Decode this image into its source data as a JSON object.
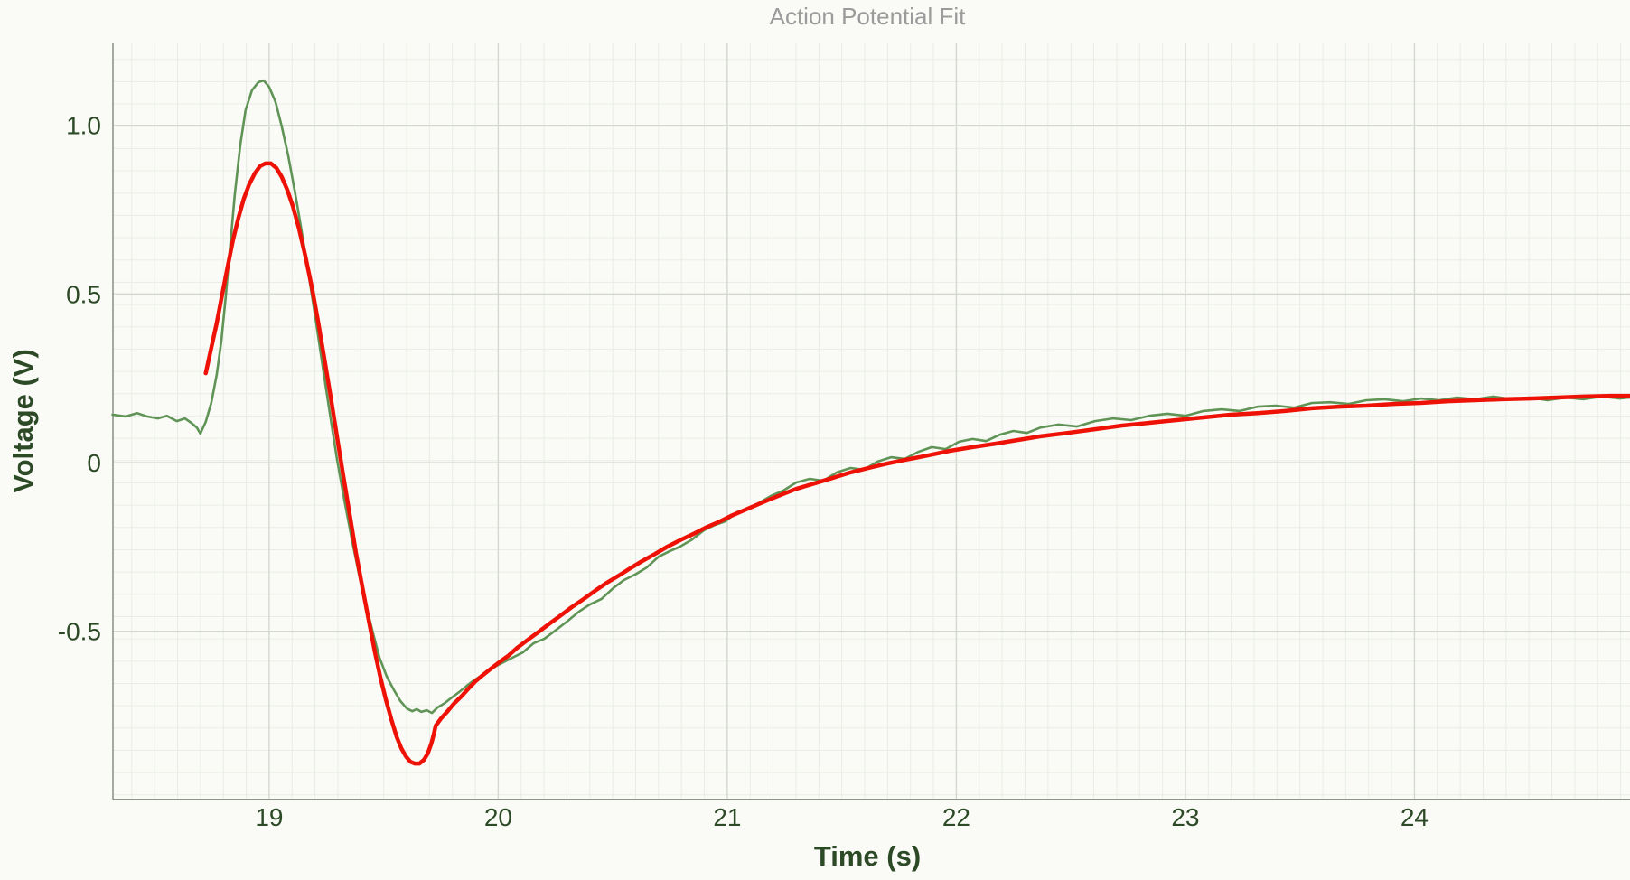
{
  "chart_data": {
    "type": "line",
    "title": "Action Potential Fit",
    "xlabel": "Time (s)",
    "ylabel": "Voltage (V)",
    "xlim": [
      18.318,
      24.941
    ],
    "ylim": [
      -0.999,
      1.243
    ],
    "x_ticks": [
      19,
      20,
      21,
      22,
      23,
      24
    ],
    "x_tick_labels": [
      "19",
      "20",
      "21",
      "22",
      "23",
      "24"
    ],
    "y_ticks": [
      -0.5,
      0,
      0.5,
      1
    ],
    "y_tick_labels": [
      "-0.5",
      "0",
      "0.5",
      "1.0"
    ],
    "grid": {
      "minor": true,
      "major": true,
      "minor_step_x": 0.1
    },
    "legend": "none",
    "series": [
      {
        "name": "recorded-data",
        "color": "#609456",
        "width": 2.6,
        "points": [
          [
            18.316,
            0.142
          ],
          [
            18.375,
            0.137
          ],
          [
            18.423,
            0.147
          ],
          [
            18.466,
            0.137
          ],
          [
            18.514,
            0.131
          ],
          [
            18.553,
            0.139
          ],
          [
            18.597,
            0.123
          ],
          [
            18.632,
            0.131
          ],
          [
            18.66,
            0.118
          ],
          [
            18.684,
            0.104
          ],
          [
            18.7,
            0.086
          ],
          [
            18.723,
            0.121
          ],
          [
            18.747,
            0.177
          ],
          [
            18.771,
            0.26
          ],
          [
            18.791,
            0.359
          ],
          [
            18.81,
            0.488
          ],
          [
            18.83,
            0.643
          ],
          [
            18.85,
            0.796
          ],
          [
            18.874,
            0.943
          ],
          [
            18.897,
            1.045
          ],
          [
            18.925,
            1.104
          ],
          [
            18.953,
            1.128
          ],
          [
            18.976,
            1.133
          ],
          [
            19.0,
            1.114
          ],
          [
            19.028,
            1.069
          ],
          [
            19.055,
            0.997
          ],
          [
            19.083,
            0.911
          ],
          [
            19.111,
            0.809
          ],
          [
            19.138,
            0.702
          ],
          [
            19.17,
            0.568
          ],
          [
            19.202,
            0.429
          ],
          [
            19.233,
            0.287
          ],
          [
            19.265,
            0.145
          ],
          [
            19.296,
            0.011
          ],
          [
            19.328,
            -0.11
          ],
          [
            19.36,
            -0.225
          ],
          [
            19.391,
            -0.327
          ],
          [
            19.423,
            -0.423
          ],
          [
            19.455,
            -0.509
          ],
          [
            19.482,
            -0.579
          ],
          [
            19.514,
            -0.635
          ],
          [
            19.545,
            -0.675
          ],
          [
            19.573,
            -0.707
          ],
          [
            19.601,
            -0.729
          ],
          [
            19.625,
            -0.737
          ],
          [
            19.644,
            -0.731
          ],
          [
            19.664,
            -0.739
          ],
          [
            19.688,
            -0.734
          ],
          [
            19.711,
            -0.742
          ],
          [
            19.735,
            -0.726
          ],
          [
            19.767,
            -0.713
          ],
          [
            19.798,
            -0.696
          ],
          [
            19.83,
            -0.68
          ],
          [
            19.862,
            -0.662
          ],
          [
            19.893,
            -0.646
          ],
          [
            19.925,
            -0.632
          ],
          [
            19.957,
            -0.616
          ],
          [
            20.0,
            -0.6
          ],
          [
            20.055,
            -0.581
          ],
          [
            20.107,
            -0.563
          ],
          [
            20.154,
            -0.536
          ],
          [
            20.202,
            -0.522
          ],
          [
            20.253,
            -0.496
          ],
          [
            20.304,
            -0.469
          ],
          [
            20.352,
            -0.442
          ],
          [
            20.399,
            -0.421
          ],
          [
            20.451,
            -0.404
          ],
          [
            20.502,
            -0.372
          ],
          [
            20.549,
            -0.348
          ],
          [
            20.597,
            -0.332
          ],
          [
            20.648,
            -0.311
          ],
          [
            20.7,
            -0.279
          ],
          [
            20.747,
            -0.263
          ],
          [
            20.794,
            -0.249
          ],
          [
            20.846,
            -0.228
          ],
          [
            20.897,
            -0.201
          ],
          [
            20.945,
            -0.185
          ],
          [
            20.992,
            -0.174
          ],
          [
            21.043,
            -0.147
          ],
          [
            21.095,
            -0.134
          ],
          [
            21.142,
            -0.118
          ],
          [
            21.19,
            -0.099
          ],
          [
            21.245,
            -0.083
          ],
          [
            21.3,
            -0.059
          ],
          [
            21.36,
            -0.048
          ],
          [
            21.419,
            -0.054
          ],
          [
            21.478,
            -0.029
          ],
          [
            21.538,
            -0.016
          ],
          [
            21.597,
            -0.021
          ],
          [
            21.656,
            0.003
          ],
          [
            21.715,
            0.016
          ],
          [
            21.775,
            0.011
          ],
          [
            21.834,
            0.032
          ],
          [
            21.893,
            0.046
          ],
          [
            21.953,
            0.04
          ],
          [
            22.012,
            0.062
          ],
          [
            22.071,
            0.07
          ],
          [
            22.13,
            0.064
          ],
          [
            22.19,
            0.083
          ],
          [
            22.249,
            0.094
          ],
          [
            22.308,
            0.088
          ],
          [
            22.368,
            0.104
          ],
          [
            22.447,
            0.113
          ],
          [
            22.526,
            0.107
          ],
          [
            22.605,
            0.123
          ],
          [
            22.684,
            0.131
          ],
          [
            22.763,
            0.126
          ],
          [
            22.842,
            0.139
          ],
          [
            22.921,
            0.145
          ],
          [
            23.0,
            0.139
          ],
          [
            23.079,
            0.153
          ],
          [
            23.158,
            0.158
          ],
          [
            23.237,
            0.153
          ],
          [
            23.316,
            0.166
          ],
          [
            23.395,
            0.169
          ],
          [
            23.474,
            0.163
          ],
          [
            23.553,
            0.177
          ],
          [
            23.632,
            0.179
          ],
          [
            23.711,
            0.174
          ],
          [
            23.79,
            0.185
          ],
          [
            23.87,
            0.188
          ],
          [
            23.949,
            0.182
          ],
          [
            24.028,
            0.19
          ],
          [
            24.107,
            0.185
          ],
          [
            24.186,
            0.193
          ],
          [
            24.265,
            0.188
          ],
          [
            24.344,
            0.196
          ],
          [
            24.423,
            0.188
          ],
          [
            24.502,
            0.193
          ],
          [
            24.581,
            0.185
          ],
          [
            24.66,
            0.193
          ],
          [
            24.739,
            0.188
          ],
          [
            24.818,
            0.196
          ],
          [
            24.897,
            0.19
          ],
          [
            24.941,
            0.193
          ]
        ]
      },
      {
        "name": "fit-curve",
        "color": "#ee1105",
        "width": 4.5,
        "points": [
          [
            18.723,
            0.265
          ],
          [
            18.747,
            0.34
          ],
          [
            18.771,
            0.413
          ],
          [
            18.794,
            0.496
          ],
          [
            18.818,
            0.579
          ],
          [
            18.842,
            0.659
          ],
          [
            18.866,
            0.726
          ],
          [
            18.889,
            0.782
          ],
          [
            18.913,
            0.825
          ],
          [
            18.937,
            0.857
          ],
          [
            18.96,
            0.879
          ],
          [
            18.984,
            0.887
          ],
          [
            19.008,
            0.887
          ],
          [
            19.032,
            0.873
          ],
          [
            19.055,
            0.847
          ],
          [
            19.079,
            0.809
          ],
          [
            19.103,
            0.761
          ],
          [
            19.13,
            0.694
          ],
          [
            19.158,
            0.613
          ],
          [
            19.186,
            0.522
          ],
          [
            19.213,
            0.421
          ],
          [
            19.241,
            0.308
          ],
          [
            19.269,
            0.193
          ],
          [
            19.296,
            0.078
          ],
          [
            19.324,
            -0.04
          ],
          [
            19.352,
            -0.155
          ],
          [
            19.379,
            -0.268
          ],
          [
            19.407,
            -0.37
          ],
          [
            19.435,
            -0.469
          ],
          [
            19.462,
            -0.563
          ],
          [
            19.486,
            -0.638
          ],
          [
            19.51,
            -0.704
          ],
          [
            19.534,
            -0.763
          ],
          [
            19.557,
            -0.814
          ],
          [
            19.577,
            -0.847
          ],
          [
            19.597,
            -0.871
          ],
          [
            19.617,
            -0.887
          ],
          [
            19.636,
            -0.892
          ],
          [
            19.656,
            -0.892
          ],
          [
            19.676,
            -0.881
          ],
          [
            19.692,
            -0.863
          ],
          [
            19.708,
            -0.833
          ],
          [
            19.719,
            -0.804
          ],
          [
            19.727,
            -0.78
          ],
          [
            19.751,
            -0.758
          ],
          [
            19.779,
            -0.737
          ],
          [
            19.806,
            -0.715
          ],
          [
            19.838,
            -0.694
          ],
          [
            19.87,
            -0.67
          ],
          [
            19.901,
            -0.648
          ],
          [
            19.933,
            -0.63
          ],
          [
            19.968,
            -0.611
          ],
          [
            20.004,
            -0.592
          ],
          [
            20.043,
            -0.573
          ],
          [
            20.083,
            -0.549
          ],
          [
            20.13,
            -0.525
          ],
          [
            20.178,
            -0.501
          ],
          [
            20.225,
            -0.477
          ],
          [
            20.273,
            -0.453
          ],
          [
            20.32,
            -0.429
          ],
          [
            20.372,
            -0.405
          ],
          [
            20.423,
            -0.38
          ],
          [
            20.474,
            -0.356
          ],
          [
            20.526,
            -0.335
          ],
          [
            20.577,
            -0.313
          ],
          [
            20.628,
            -0.292
          ],
          [
            20.684,
            -0.271
          ],
          [
            20.739,
            -0.249
          ],
          [
            20.794,
            -0.23
          ],
          [
            20.85,
            -0.212
          ],
          [
            20.905,
            -0.193
          ],
          [
            20.96,
            -0.177
          ],
          [
            21.016,
            -0.158
          ],
          [
            21.071,
            -0.142
          ],
          [
            21.126,
            -0.126
          ],
          [
            21.182,
            -0.11
          ],
          [
            21.241,
            -0.094
          ],
          [
            21.3,
            -0.078
          ],
          [
            21.379,
            -0.062
          ],
          [
            21.458,
            -0.046
          ],
          [
            21.538,
            -0.029
          ],
          [
            21.617,
            -0.016
          ],
          [
            21.696,
            -0.003
          ],
          [
            21.775,
            0.008
          ],
          [
            21.874,
            0.021
          ],
          [
            21.972,
            0.035
          ],
          [
            22.071,
            0.046
          ],
          [
            22.17,
            0.056
          ],
          [
            22.269,
            0.067
          ],
          [
            22.368,
            0.078
          ],
          [
            22.486,
            0.088
          ],
          [
            22.605,
            0.099
          ],
          [
            22.724,
            0.11
          ],
          [
            22.842,
            0.118
          ],
          [
            22.96,
            0.126
          ],
          [
            23.079,
            0.134
          ],
          [
            23.198,
            0.142
          ],
          [
            23.316,
            0.147
          ],
          [
            23.435,
            0.153
          ],
          [
            23.553,
            0.161
          ],
          [
            23.672,
            0.166
          ],
          [
            23.79,
            0.169
          ],
          [
            23.909,
            0.174
          ],
          [
            24.028,
            0.177
          ],
          [
            24.146,
            0.182
          ],
          [
            24.265,
            0.185
          ],
          [
            24.383,
            0.188
          ],
          [
            24.502,
            0.19
          ],
          [
            24.621,
            0.193
          ],
          [
            24.739,
            0.196
          ],
          [
            24.858,
            0.198
          ],
          [
            24.941,
            0.198
          ]
        ]
      }
    ]
  },
  "colors": {
    "background": "#fafbf7",
    "minor_grid": "#e9ece6",
    "major_grid": "#d4d8d1",
    "axis_line": "#8f958d",
    "title_text": "#9b9b9b",
    "axis_text": "#2d4a27",
    "data_series": "#609456",
    "fit_series": "#ee1105"
  }
}
